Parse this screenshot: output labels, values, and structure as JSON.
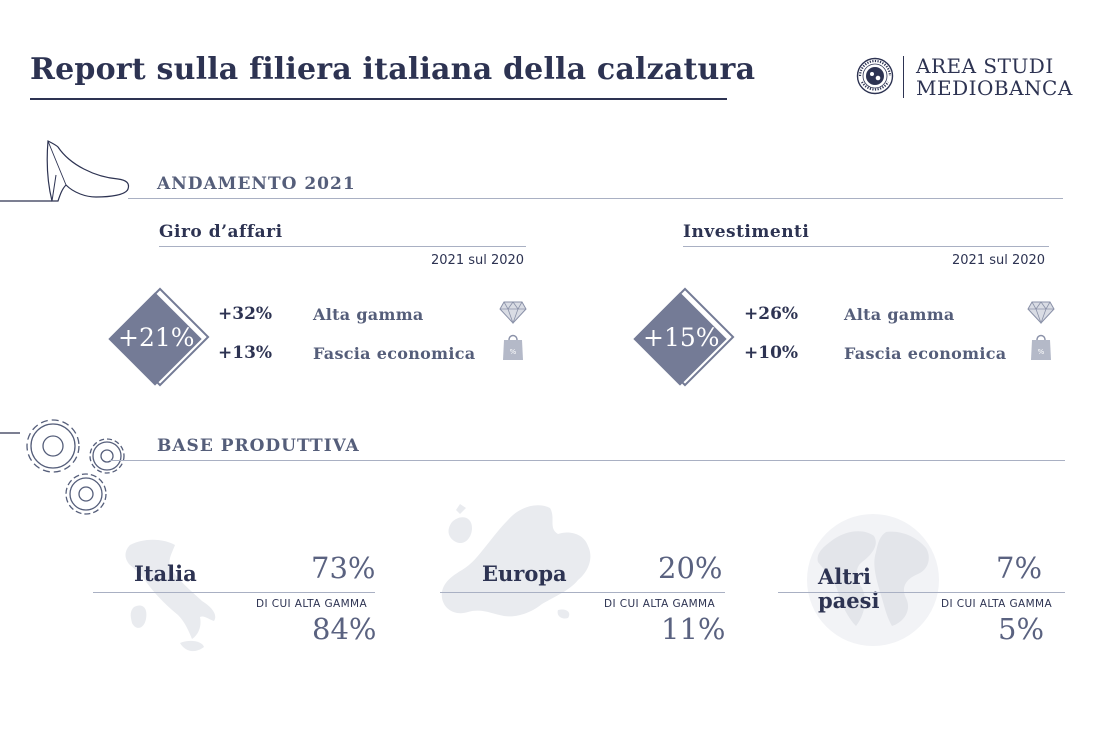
{
  "header": {
    "title": "Report sulla filiera italiana della calzatura",
    "brand_line1": "AREA STUDI",
    "brand_line2": "MEDIOBANCA"
  },
  "section1": {
    "label": "ANDAMENTO 2021",
    "blocks": [
      {
        "title": "Giro d’affari",
        "period": "2021 sul 2020",
        "total": "+21%",
        "rows": [
          {
            "value": "+32%",
            "label": "Alta gamma",
            "icon": "diamond-icon"
          },
          {
            "value": "+13%",
            "label": "Fascia economica",
            "icon": "shopping-bag-icon"
          }
        ]
      },
      {
        "title": "Investimenti",
        "period": "2021 sul 2020",
        "total": "+15%",
        "rows": [
          {
            "value": "+26%",
            "label": "Alta gamma",
            "icon": "diamond-icon"
          },
          {
            "value": "+10%",
            "label": "Fascia economica",
            "icon": "shopping-bag-icon"
          }
        ]
      }
    ]
  },
  "section2": {
    "label": "BASE PRODUTTIVA",
    "sub_caption": "DI CUI ALTA GAMMA",
    "regions": [
      {
        "name": "Italia",
        "share": "73%",
        "high_end": "84%",
        "map": "italy-map"
      },
      {
        "name": "Europa",
        "share": "20%",
        "high_end": "11%",
        "map": "europe-map"
      },
      {
        "name_line1": "Altri",
        "name_line2": "paesi",
        "share": "7%",
        "high_end": "5%",
        "map": "globe-map"
      }
    ]
  },
  "colors": {
    "primary": "#2d3352",
    "accent": "#747b96",
    "muted": "#555e7a",
    "map": "#e9ebef"
  }
}
